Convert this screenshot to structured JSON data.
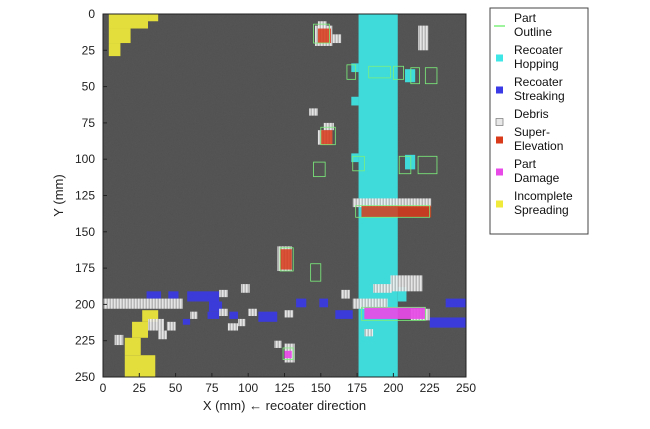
{
  "chart_data": {
    "type": "heatmap",
    "title": "",
    "xlabel": "X (mm) ← recoater direction",
    "ylabel": "Y (mm)",
    "xlim": [
      0,
      250
    ],
    "ylim": [
      0,
      250
    ],
    "y_inverted": true,
    "xticks": [
      0,
      25,
      50,
      75,
      100,
      125,
      150,
      175,
      200,
      225,
      250
    ],
    "yticks": [
      0,
      25,
      50,
      75,
      100,
      125,
      150,
      175,
      200,
      225,
      250
    ],
    "legend_position": "right",
    "colors": {
      "background": "#555555",
      "part_outline": "#7cf07c",
      "recoater_hopping": "#3ee6e6",
      "recoater_streaking": "#3a3ae6",
      "debris": "#e8e8e8",
      "super_elevation": "#d83a1a",
      "part_damage": "#e84ae8",
      "incomplete_spreading": "#f0ea3a"
    },
    "legend": [
      {
        "key": "part_outline",
        "lines": [
          "Part",
          "Outline"
        ]
      },
      {
        "key": "recoater_hopping",
        "lines": [
          "Recoater",
          "Hopping"
        ]
      },
      {
        "key": "recoater_streaking",
        "lines": [
          "Recoater",
          "Streaking"
        ]
      },
      {
        "key": "debris",
        "lines": [
          "Debris"
        ]
      },
      {
        "key": "super_elevation",
        "lines": [
          "Super-",
          "Elevation"
        ]
      },
      {
        "key": "part_damage",
        "lines": [
          "Part",
          "Damage"
        ]
      },
      {
        "key": "incomplete_spreading",
        "lines": [
          "Incomplete",
          "Spreading"
        ]
      }
    ],
    "regions": [
      {
        "type": "recoater_hopping",
        "x": [
          176,
          203
        ],
        "y": [
          0,
          250
        ]
      },
      {
        "type": "recoater_hopping",
        "x": [
          171,
          176
        ],
        "y": [
          34,
          40
        ]
      },
      {
        "type": "recoater_hopping",
        "x": [
          171,
          176
        ],
        "y": [
          57,
          63
        ]
      },
      {
        "type": "recoater_hopping",
        "x": [
          171,
          176
        ],
        "y": [
          96,
          102
        ]
      },
      {
        "type": "recoater_hopping",
        "x": [
          208,
          215
        ],
        "y": [
          38,
          47
        ]
      },
      {
        "type": "recoater_hopping",
        "x": [
          208,
          215
        ],
        "y": [
          97,
          107
        ]
      },
      {
        "type": "recoater_hopping",
        "x": [
          203,
          209
        ],
        "y": [
          188,
          198
        ]
      },
      {
        "type": "incomplete_spreading",
        "x": [
          4,
          31
        ],
        "y": [
          0,
          10
        ]
      },
      {
        "type": "incomplete_spreading",
        "x": [
          4,
          19
        ],
        "y": [
          10,
          20
        ]
      },
      {
        "type": "incomplete_spreading",
        "x": [
          4,
          12
        ],
        "y": [
          20,
          29
        ]
      },
      {
        "type": "incomplete_spreading",
        "x": [
          31,
          38
        ],
        "y": [
          0,
          5
        ]
      },
      {
        "type": "incomplete_spreading",
        "x": [
          27,
          38
        ],
        "y": [
          204,
          212
        ]
      },
      {
        "type": "incomplete_spreading",
        "x": [
          20,
          31
        ],
        "y": [
          212,
          223
        ]
      },
      {
        "type": "incomplete_spreading",
        "x": [
          15,
          26
        ],
        "y": [
          223,
          235
        ]
      },
      {
        "type": "incomplete_spreading",
        "x": [
          15,
          36
        ],
        "y": [
          235,
          250
        ]
      },
      {
        "type": "recoater_streaking",
        "x": [
          30,
          40
        ],
        "y": [
          191,
          196
        ]
      },
      {
        "type": "recoater_streaking",
        "x": [
          45,
          52
        ],
        "y": [
          191,
          196
        ]
      },
      {
        "type": "recoater_streaking",
        "x": [
          58,
          80
        ],
        "y": [
          191,
          198
        ]
      },
      {
        "type": "recoater_streaking",
        "x": [
          73,
          82
        ],
        "y": [
          198,
          205
        ]
      },
      {
        "type": "recoater_streaking",
        "x": [
          55,
          60
        ],
        "y": [
          210,
          214
        ]
      },
      {
        "type": "recoater_streaking",
        "x": [
          72,
          80
        ],
        "y": [
          205,
          210
        ]
      },
      {
        "type": "recoater_streaking",
        "x": [
          87,
          93
        ],
        "y": [
          205,
          210
        ]
      },
      {
        "type": "recoater_streaking",
        "x": [
          107,
          120
        ],
        "y": [
          205,
          212
        ]
      },
      {
        "type": "recoater_streaking",
        "x": [
          133,
          140
        ],
        "y": [
          196,
          202
        ]
      },
      {
        "type": "recoater_streaking",
        "x": [
          149,
          155
        ],
        "y": [
          196,
          202
        ]
      },
      {
        "type": "recoater_streaking",
        "x": [
          160,
          172
        ],
        "y": [
          204,
          210
        ]
      },
      {
        "type": "recoater_streaking",
        "x": [
          236,
          250
        ],
        "y": [
          196,
          202
        ]
      },
      {
        "type": "recoater_streaking",
        "x": [
          225,
          250
        ],
        "y": [
          209,
          216
        ]
      },
      {
        "type": "debris",
        "x": [
          0,
          55
        ],
        "y": [
          196,
          203
        ]
      },
      {
        "type": "debris",
        "x": [
          8,
          14
        ],
        "y": [
          221,
          228
        ]
      },
      {
        "type": "debris",
        "x": [
          31,
          42
        ],
        "y": [
          210,
          218
        ]
      },
      {
        "type": "debris",
        "x": [
          44,
          50
        ],
        "y": [
          212,
          218
        ]
      },
      {
        "type": "debris",
        "x": [
          38,
          44
        ],
        "y": [
          218,
          224
        ]
      },
      {
        "type": "debris",
        "x": [
          60,
          65
        ],
        "y": [
          205,
          210
        ]
      },
      {
        "type": "debris",
        "x": [
          80,
          86
        ],
        "y": [
          203,
          208
        ]
      },
      {
        "type": "debris",
        "x": [
          93,
          98
        ],
        "y": [
          210,
          215
        ]
      },
      {
        "type": "debris",
        "x": [
          86,
          93
        ],
        "y": [
          213,
          218
        ]
      },
      {
        "type": "debris",
        "x": [
          100,
          106
        ],
        "y": [
          203,
          208
        ]
      },
      {
        "type": "debris",
        "x": [
          125,
          131
        ],
        "y": [
          204,
          209
        ]
      },
      {
        "type": "debris",
        "x": [
          95,
          101
        ],
        "y": [
          186,
          192
        ]
      },
      {
        "type": "debris",
        "x": [
          80,
          86
        ],
        "y": [
          190,
          195
        ]
      },
      {
        "type": "debris",
        "x": [
          164,
          170
        ],
        "y": [
          190,
          196
        ]
      },
      {
        "type": "debris",
        "x": [
          148,
          154
        ],
        "y": [
          5,
          11
        ]
      },
      {
        "type": "debris",
        "x": [
          158,
          164
        ],
        "y": [
          14,
          20
        ]
      },
      {
        "type": "debris",
        "x": [
          172,
          226
        ],
        "y": [
          127,
          133
        ]
      },
      {
        "type": "debris",
        "x": [
          198,
          220
        ],
        "y": [
          180,
          191
        ]
      },
      {
        "type": "debris",
        "x": [
          186,
          199
        ],
        "y": [
          186,
          192
        ]
      },
      {
        "type": "debris",
        "x": [
          172,
          196
        ],
        "y": [
          196,
          203
        ]
      },
      {
        "type": "debris",
        "x": [
          180,
          186
        ],
        "y": [
          217,
          222
        ]
      },
      {
        "type": "debris",
        "x": [
          212,
          225
        ],
        "y": [
          203,
          211
        ]
      },
      {
        "type": "debris",
        "x": [
          125,
          132
        ],
        "y": [
          227,
          240
        ]
      },
      {
        "type": "debris",
        "x": [
          118,
          123
        ],
        "y": [
          225,
          230
        ]
      },
      {
        "type": "debris",
        "x": [
          217,
          224
        ],
        "y": [
          8,
          25
        ]
      },
      {
        "type": "debris",
        "x": [
          142,
          148
        ],
        "y": [
          65,
          70
        ]
      },
      {
        "type": "debris",
        "x": [
          152,
          159
        ],
        "y": [
          75,
          80
        ]
      },
      {
        "type": "debris",
        "x": [
          148,
          158
        ],
        "y": [
          80,
          90
        ]
      },
      {
        "type": "debris",
        "x": [
          120,
          130
        ],
        "y": [
          160,
          177
        ]
      },
      {
        "type": "debris",
        "x": [
          146,
          158
        ],
        "y": [
          8,
          22
        ]
      },
      {
        "type": "super_elevation",
        "x": [
          148,
          157
        ],
        "y": [
          10,
          20
        ]
      },
      {
        "type": "super_elevation",
        "x": [
          150,
          158
        ],
        "y": [
          80,
          90
        ]
      },
      {
        "type": "super_elevation",
        "x": [
          122,
          130
        ],
        "y": [
          162,
          176
        ]
      },
      {
        "type": "super_elevation",
        "x": [
          178,
          226
        ],
        "y": [
          132,
          140
        ]
      },
      {
        "type": "part_damage",
        "x": [
          180,
          222
        ],
        "y": [
          202,
          210
        ]
      },
      {
        "type": "part_damage",
        "x": [
          125,
          130
        ],
        "y": [
          232,
          237
        ]
      }
    ],
    "outlines": [
      {
        "x": [
          145,
          156
        ],
        "y": [
          7,
          20
        ]
      },
      {
        "x": [
          150,
          160
        ],
        "y": [
          78,
          90
        ]
      },
      {
        "x": [
          122,
          131
        ],
        "y": [
          161,
          177
        ]
      },
      {
        "x": [
          143,
          150
        ],
        "y": [
          172,
          184
        ]
      },
      {
        "x": [
          145,
          153
        ],
        "y": [
          102,
          112
        ]
      },
      {
        "x": [
          174,
          225
        ],
        "y": [
          132,
          140
        ]
      },
      {
        "x": [
          178,
          222
        ],
        "y": [
          202,
          211
        ]
      },
      {
        "x": [
          124,
          131
        ],
        "y": [
          230,
          238
        ]
      },
      {
        "x": [
          168,
          174
        ],
        "y": [
          35,
          45
        ]
      },
      {
        "x": [
          183,
          198
        ],
        "y": [
          36,
          44
        ]
      },
      {
        "x": [
          200,
          207
        ],
        "y": [
          36,
          45
        ]
      },
      {
        "x": [
          212,
          218
        ],
        "y": [
          37,
          48
        ]
      },
      {
        "x": [
          222,
          230
        ],
        "y": [
          37,
          48
        ]
      },
      {
        "x": [
          172,
          180
        ],
        "y": [
          98,
          108
        ]
      },
      {
        "x": [
          204,
          212
        ],
        "y": [
          98,
          110
        ]
      },
      {
        "x": [
          217,
          230
        ],
        "y": [
          98,
          110
        ]
      }
    ]
  }
}
